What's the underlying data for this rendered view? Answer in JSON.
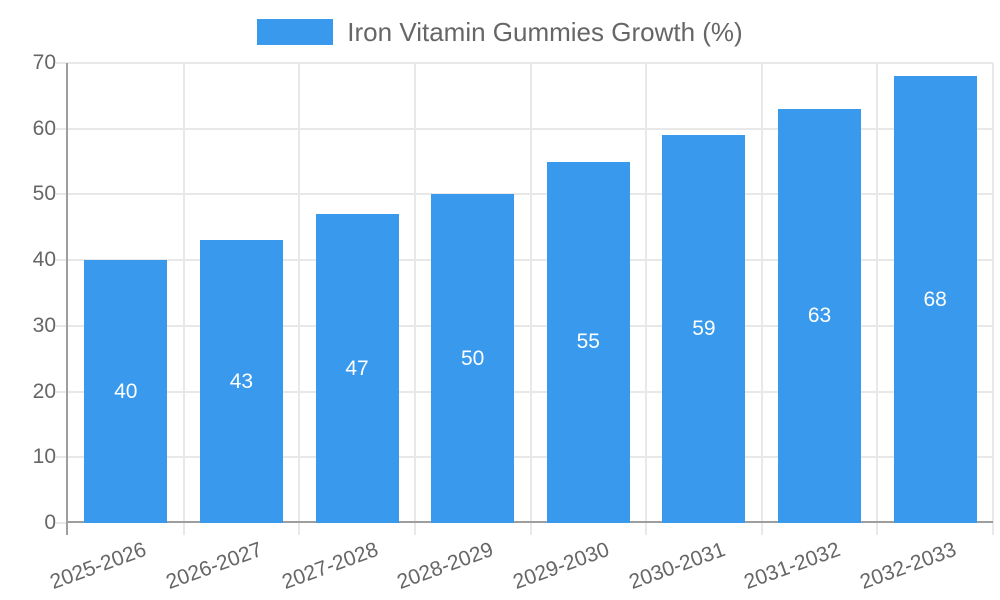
{
  "chart_data": {
    "type": "bar",
    "title": "Iron Vitamin Gummies Growth (%)",
    "legend": {
      "label": "Iron Vitamin Gummies Growth (%)",
      "position": "top"
    },
    "categories": [
      "2025-2026",
      "2026-2027",
      "2027-2028",
      "2028-2029",
      "2029-2030",
      "2030-2031",
      "2031-2032",
      "2032-2033"
    ],
    "values": [
      40,
      43,
      47,
      50,
      55,
      59,
      63,
      68
    ],
    "xlabel": "",
    "ylabel": "",
    "ylim": [
      0,
      70
    ],
    "yticks": [
      0,
      10,
      20,
      30,
      40,
      50,
      60,
      70
    ],
    "grid": true,
    "value_label_position": "center-of-bar",
    "x_tick_rotation_deg": -20,
    "colors": {
      "bar": "#3899ed",
      "grid": "#e8e8e8",
      "axis": "#9e9e9e",
      "tick_text": "#666666",
      "legend_text": "#666666",
      "value_label": "#ffffff",
      "background": "#ffffff"
    }
  }
}
